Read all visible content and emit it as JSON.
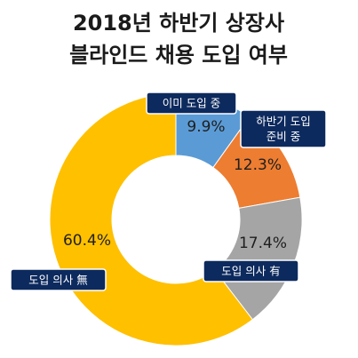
{
  "chart_data": {
    "type": "pie",
    "variant": "donut",
    "title_lines": [
      "2018년 하반기 상장사",
      "블라인드 채용 도입 여부"
    ],
    "slices": [
      {
        "label_lines": [
          "이미 도입 중"
        ],
        "value": 9.9,
        "value_label": "9.9%",
        "color": "#5b9bd5"
      },
      {
        "label_lines": [
          "하반기 도입",
          "준비 중"
        ],
        "value": 12.3,
        "value_label": "12.3%",
        "color": "#ed7d31"
      },
      {
        "label_lines": [
          "도입 의사 有"
        ],
        "value": 17.4,
        "value_label": "17.4%",
        "color": "#a5a5a5"
      },
      {
        "label_lines": [
          "도입 의사 無"
        ],
        "value": 60.4,
        "value_label": "60.4%",
        "color": "#ffc000"
      }
    ],
    "label_box_color": "#0d2a5e"
  }
}
